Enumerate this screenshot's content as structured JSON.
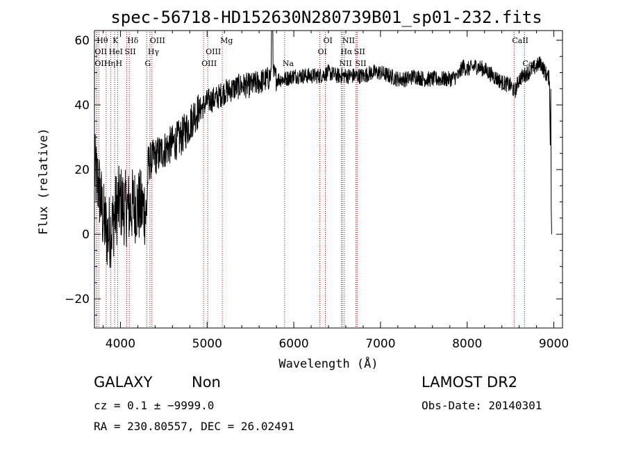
{
  "info": {
    "object_class": "GALAXY",
    "subclass": "Non",
    "survey": "LAMOST DR2",
    "cz_line": "cz = 0.1 ± −9999.0",
    "obs_date": "Obs-Date: 20140301",
    "coords": "RA = 230.80557, DEC =  26.02491"
  },
  "chart_data": {
    "type": "line",
    "title": "spec-56718-HD152630N280739B01_sp01-232.fits",
    "xlabel": "Wavelength (Å)",
    "ylabel": "Flux (relative)",
    "xlim": [
      3700,
      9100
    ],
    "ylim": [
      -29,
      63
    ],
    "xticks": [
      4000,
      5000,
      6000,
      7000,
      8000,
      9000
    ],
    "yticks": [
      -20,
      0,
      20,
      40,
      60
    ],
    "ytick_labels": [
      "−20",
      "0",
      "20",
      "40",
      "60"
    ],
    "line_color": "#000000",
    "marker_color": "#990000",
    "spectrum_anchors": [
      [
        3700,
        20
      ],
      [
        3750,
        15
      ],
      [
        3800,
        5
      ],
      [
        3850,
        0
      ],
      [
        3900,
        2
      ],
      [
        3950,
        8
      ],
      [
        4000,
        10
      ],
      [
        4050,
        8
      ],
      [
        4100,
        8
      ],
      [
        4150,
        9
      ],
      [
        4200,
        9
      ],
      [
        4250,
        8
      ],
      [
        4280,
        8
      ],
      [
        4300,
        5
      ],
      [
        4320,
        22
      ],
      [
        4400,
        24
      ],
      [
        4500,
        26
      ],
      [
        4600,
        28
      ],
      [
        4700,
        30
      ],
      [
        4800,
        34
      ],
      [
        4850,
        37
      ],
      [
        4900,
        38
      ],
      [
        5000,
        41
      ],
      [
        5100,
        42
      ],
      [
        5200,
        44
      ],
      [
        5300,
        45
      ],
      [
        5400,
        46
      ],
      [
        5500,
        46
      ],
      [
        5600,
        47
      ],
      [
        5700,
        48
      ],
      [
        5750,
        50
      ],
      [
        5800,
        48
      ],
      [
        5900,
        48
      ],
      [
        6000,
        49
      ],
      [
        6100,
        49
      ],
      [
        6200,
        49
      ],
      [
        6300,
        49
      ],
      [
        6400,
        50
      ],
      [
        6500,
        49
      ],
      [
        6600,
        49
      ],
      [
        6700,
        49
      ],
      [
        6800,
        49
      ],
      [
        6900,
        50
      ],
      [
        7000,
        50
      ],
      [
        7100,
        49
      ],
      [
        7200,
        48
      ],
      [
        7300,
        48
      ],
      [
        7400,
        49
      ],
      [
        7500,
        48
      ],
      [
        7600,
        48
      ],
      [
        7700,
        48
      ],
      [
        7800,
        48
      ],
      [
        7900,
        49
      ],
      [
        7950,
        52
      ],
      [
        8000,
        51
      ],
      [
        8100,
        52
      ],
      [
        8200,
        51
      ],
      [
        8300,
        49
      ],
      [
        8400,
        47
      ],
      [
        8500,
        46
      ],
      [
        8550,
        44
      ],
      [
        8600,
        48
      ],
      [
        8700,
        50
      ],
      [
        8800,
        52
      ],
      [
        8850,
        53
      ],
      [
        8900,
        50
      ],
      [
        8950,
        48
      ],
      [
        8970,
        0
      ]
    ],
    "lines": [
      {
        "name": "OII",
        "wl": 3727,
        "row": 2
      },
      {
        "name": "Hθ",
        "wl": 3750,
        "row": 1
      },
      {
        "name": "OII",
        "wl": 3727,
        "row": 3
      },
      {
        "name": "Hη",
        "wl": 3835,
        "row": 3
      },
      {
        "name": "HeI",
        "wl": 3889,
        "row": 2
      },
      {
        "name": "K",
        "wl": 3933,
        "row": 1
      },
      {
        "name": "H",
        "wl": 3968,
        "row": 3
      },
      {
        "name": "SII",
        "wl": 4072,
        "row": 2
      },
      {
        "name": "Hδ",
        "wl": 4102,
        "row": 1
      },
      {
        "name": "G",
        "wl": 4304,
        "row": 3
      },
      {
        "name": "OIII",
        "wl": 4363,
        "row": 1
      },
      {
        "name": "Hγ",
        "wl": 4340,
        "row": 2
      },
      {
        "name": "OIII",
        "wl": 4959,
        "row": 3
      },
      {
        "name": "OIII",
        "wl": 5007,
        "row": 2
      },
      {
        "name": "Mg",
        "wl": 5175,
        "row": 1
      },
      {
        "name": "Na",
        "wl": 5894,
        "row": 3
      },
      {
        "name": "OI",
        "wl": 6300,
        "row": 2
      },
      {
        "name": "OI",
        "wl": 6364,
        "row": 1
      },
      {
        "name": "NII",
        "wl": 6548,
        "row": 3
      },
      {
        "name": "Hα",
        "wl": 6563,
        "row": 2
      },
      {
        "name": "NII",
        "wl": 6583,
        "row": 1
      },
      {
        "name": "SII",
        "wl": 6717,
        "row": 2
      },
      {
        "name": "SII",
        "wl": 6731,
        "row": 3
      },
      {
        "name": "CaII",
        "wl": 8542,
        "row": 1
      },
      {
        "name": "CaII",
        "wl": 8662,
        "row": 3
      }
    ]
  }
}
